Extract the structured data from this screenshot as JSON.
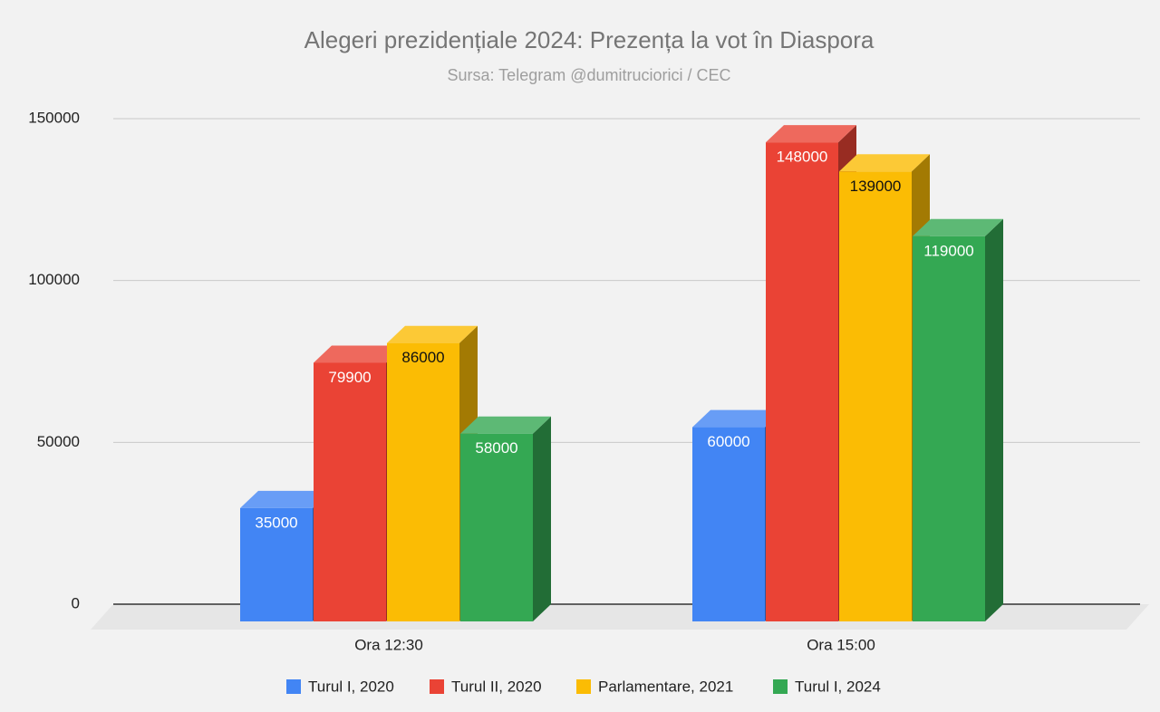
{
  "chart_data": {
    "type": "bar3d",
    "title": "Alegeri prezidențiale 2024: Prezența la vot în Diaspora",
    "subtitle": "Sursa: Telegram @dumitruciorici / CEC",
    "categories": [
      "Ora 12:30",
      "Ora 15:00"
    ],
    "series": [
      {
        "name": "Turul I, 2020",
        "color": "#4285f4",
        "values": [
          35000,
          60000
        ]
      },
      {
        "name": "Turul II, 2020",
        "color": "#ea4335",
        "values": [
          79900,
          148000
        ]
      },
      {
        "name": "Parlamentare, 2021",
        "color": "#fbbc04",
        "values": [
          86000,
          139000
        ]
      },
      {
        "name": "Turul I, 2024",
        "color": "#34a853",
        "values": [
          58000,
          119000
        ]
      }
    ],
    "ylim": [
      0,
      150000
    ],
    "yticks": [
      0,
      50000,
      100000,
      150000
    ],
    "grid": true,
    "legend": "bottom"
  }
}
